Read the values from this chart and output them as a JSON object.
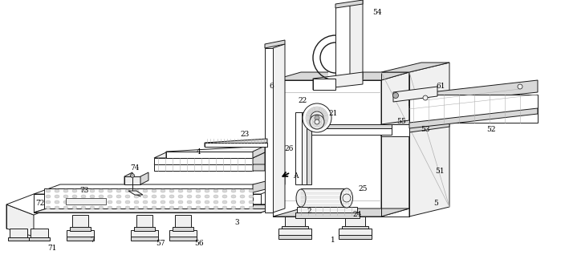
{
  "background_color": "#ffffff",
  "line_color": "#1a1a1a",
  "figsize": [
    7.09,
    3.18
  ],
  "dpi": 100,
  "lw": 0.7,
  "gray_light": "#f0f0f0",
  "gray_mid": "#d8d8d8",
  "gray_dark": "#b0b0b0",
  "white": "#ffffff"
}
